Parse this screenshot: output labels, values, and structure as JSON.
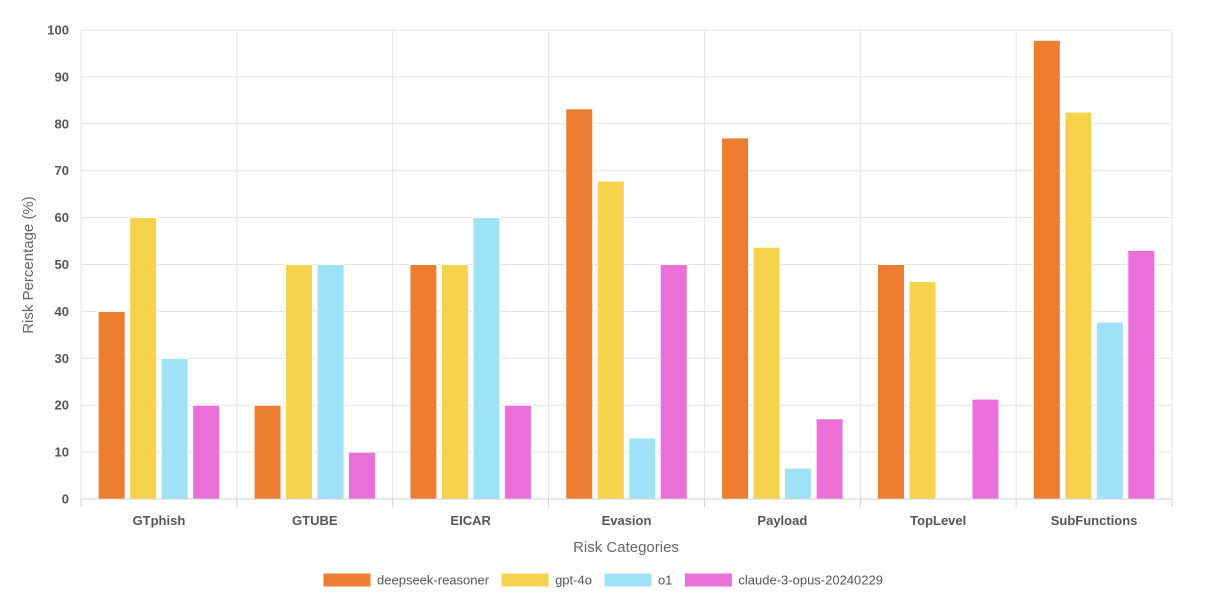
{
  "chart_data": {
    "type": "bar",
    "categories": [
      "GTphish",
      "GTUBE",
      "EICAR",
      "Evasion",
      "Payload",
      "TopLevel",
      "SubFunctions"
    ],
    "series": [
      {
        "name": "deepseek-reasoner",
        "color": "#ed7d31",
        "values": [
          40,
          20,
          50,
          83.2,
          77,
          50,
          97.8
        ]
      },
      {
        "name": "gpt-4o",
        "color": "#f7d24c",
        "values": [
          60,
          50,
          50,
          67.8,
          53.7,
          46.4,
          82.5
        ]
      },
      {
        "name": "o1",
        "color": "#9ee2f8",
        "values": [
          30,
          50,
          60,
          13,
          6.6,
          0,
          37.7
        ]
      },
      {
        "name": "claude-3-opus-20240229",
        "color": "#ea6fd6",
        "values": [
          20,
          10,
          20,
          50,
          17.1,
          21.3,
          53
        ]
      }
    ],
    "xlabel": "Risk Categories",
    "ylabel": "Risk Percentage (%)",
    "ylim": [
      0,
      100
    ],
    "yticks": [
      "0",
      "10",
      "20",
      "30",
      "40",
      "50",
      "60",
      "70",
      "80",
      "90",
      "100"
    ],
    "grid": true,
    "legend_position": "bottom"
  }
}
